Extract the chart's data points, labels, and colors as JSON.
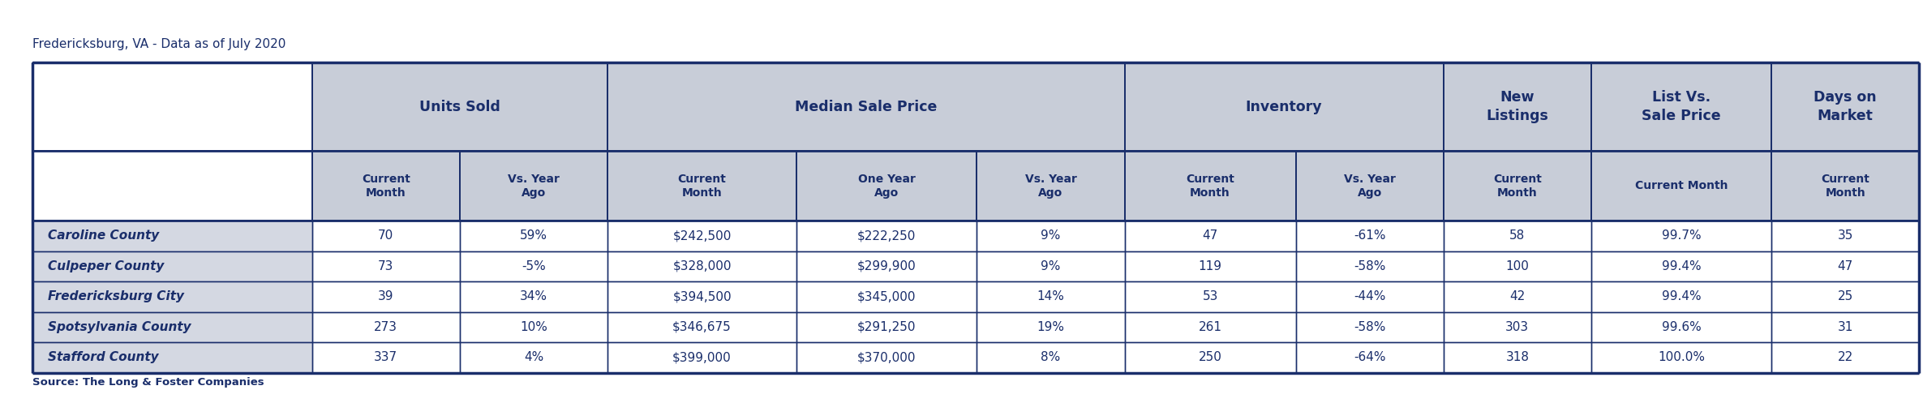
{
  "title": "Fredericksburg, VA - Data as of July 2020",
  "source": "Source: The Long & Foster Companies",
  "header_bg": "#c8cdd8",
  "data_row_bg": "#d4d8e2",
  "data_cell_bg": "#ffffff",
  "header_text_color": "#1a2e6b",
  "border_color": "#1a2e6b",
  "sub_headers": [
    "Current\nMonth",
    "Vs. Year\nAgo",
    "Current\nMonth",
    "One Year\nAgo",
    "Vs. Year\nAgo",
    "Current\nMonth",
    "Vs. Year\nAgo",
    "Current\nMonth",
    "Current Month",
    "Current\nMonth"
  ],
  "row_labels": [
    "Caroline County",
    "Culpeper County",
    "Fredericksburg City",
    "Spotsylvania County",
    "Stafford County"
  ],
  "rows": [
    [
      "70",
      "59%",
      "$242,500",
      "$222,250",
      "9%",
      "47",
      "-61%",
      "58",
      "99.7%",
      "35"
    ],
    [
      "73",
      "-5%",
      "$328,000",
      "$299,900",
      "9%",
      "119",
      "-58%",
      "100",
      "99.4%",
      "47"
    ],
    [
      "39",
      "34%",
      "$394,500",
      "$345,000",
      "14%",
      "53",
      "-44%",
      "42",
      "99.4%",
      "25"
    ],
    [
      "273",
      "10%",
      "$346,675",
      "$291,250",
      "19%",
      "261",
      "-58%",
      "303",
      "99.6%",
      "31"
    ],
    [
      "337",
      "4%",
      "$399,000",
      "$370,000",
      "8%",
      "250",
      "-64%",
      "318",
      "100.0%",
      "22"
    ]
  ],
  "col_rel_widths": [
    1.55,
    0.82,
    0.82,
    1.05,
    1.0,
    0.82,
    0.95,
    0.82,
    0.82,
    1.0,
    0.82
  ],
  "group_spans": [
    [
      0,
      0,
      ""
    ],
    [
      1,
      2,
      "Units Sold"
    ],
    [
      3,
      5,
      "Median Sale Price"
    ],
    [
      6,
      7,
      "Inventory"
    ],
    [
      8,
      8,
      "New\nListings"
    ],
    [
      9,
      9,
      "List Vs.\nSale Price"
    ],
    [
      10,
      10,
      "Days on\nMarket"
    ]
  ]
}
